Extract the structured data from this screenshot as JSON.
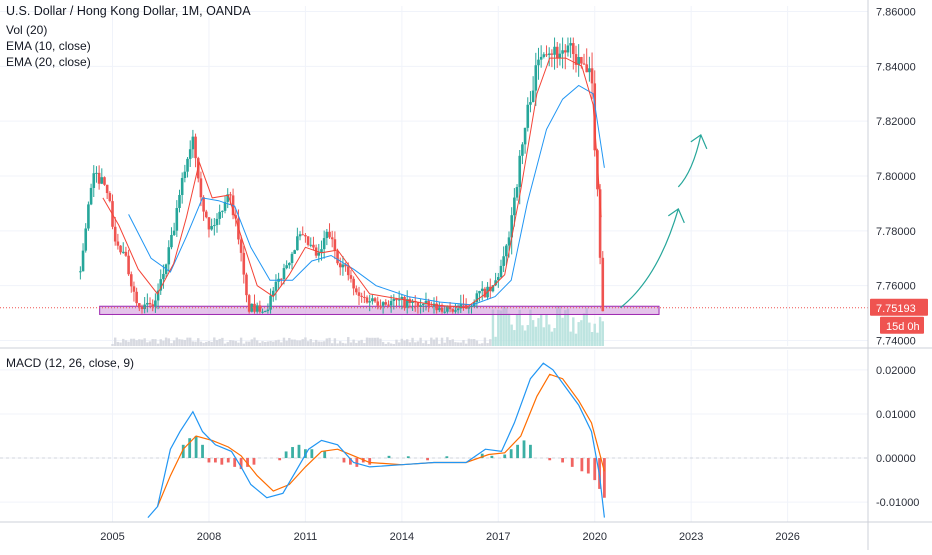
{
  "header": {
    "title": "U.S. Dollar / Hong Kong Dollar, 1M, OANDA",
    "indicators": [
      "Vol (20)",
      "EMA (10, close)",
      "EMA (20, close)"
    ]
  },
  "macd_pane": {
    "label": "MACD (12, 26, close, 9)"
  },
  "price_badge": {
    "value": "7.75193",
    "countdown": "15d 0h"
  },
  "colors": {
    "up": "#26a69a",
    "down": "#ef5350",
    "ema10": "#f44336",
    "ema20": "#2196f3",
    "macd_line": "#2196f3",
    "signal_line": "#ff6d00",
    "zone_fill": "#ce93d8",
    "arrow": "#26a69a",
    "price_line": "#ef5350"
  },
  "chart_data": [
    {
      "type": "candlestick",
      "name": "price-pane",
      "title": "U.S. Dollar / Hong Kong Dollar, 1M, OANDA",
      "x_ticks": [
        "2005",
        "2008",
        "2011",
        "2014",
        "2017",
        "2020",
        "2023",
        "2026"
      ],
      "y_ticks": [
        "7.74000",
        "7.76000",
        "7.78000",
        "7.80000",
        "7.82000",
        "7.84000",
        "7.86000"
      ],
      "ylim": [
        7.738,
        7.862
      ],
      "xlim": [
        2001.5,
        2028.5
      ],
      "last_price": 7.75193,
      "support_zone": {
        "from_year": 2004.6,
        "to_year": 2022.0,
        "low": 7.7495,
        "high": 7.7525
      },
      "price_path": [
        [
          2004.0,
          7.765
        ],
        [
          2004.2,
          7.785
        ],
        [
          2004.4,
          7.8
        ],
        [
          2004.8,
          7.798
        ],
        [
          2005.1,
          7.775
        ],
        [
          2005.4,
          7.77
        ],
        [
          2005.7,
          7.756
        ],
        [
          2006.0,
          7.752
        ],
        [
          2006.3,
          7.753
        ],
        [
          2006.6,
          7.765
        ],
        [
          2006.9,
          7.78
        ],
        [
          2007.2,
          7.8
        ],
        [
          2007.5,
          7.815
        ],
        [
          2007.8,
          7.79
        ],
        [
          2008.0,
          7.78
        ],
        [
          2008.3,
          7.785
        ],
        [
          2008.6,
          7.795
        ],
        [
          2008.9,
          7.78
        ],
        [
          2009.2,
          7.752
        ],
        [
          2009.5,
          7.751
        ],
        [
          2009.8,
          7.752
        ],
        [
          2010.1,
          7.76
        ],
        [
          2010.5,
          7.77
        ],
        [
          2010.8,
          7.778
        ],
        [
          2011.1,
          7.775
        ],
        [
          2011.4,
          7.77
        ],
        [
          2011.7,
          7.78
        ],
        [
          2012.0,
          7.77
        ],
        [
          2012.3,
          7.765
        ],
        [
          2012.6,
          7.756
        ],
        [
          2013.0,
          7.755
        ],
        [
          2013.5,
          7.754
        ],
        [
          2014.0,
          7.754
        ],
        [
          2014.5,
          7.753
        ],
        [
          2015.0,
          7.752
        ],
        [
          2015.5,
          7.751
        ],
        [
          2016.0,
          7.752
        ],
        [
          2016.4,
          7.757
        ],
        [
          2016.8,
          7.758
        ],
        [
          2017.2,
          7.77
        ],
        [
          2017.6,
          7.8
        ],
        [
          2018.0,
          7.83
        ],
        [
          2018.4,
          7.848
        ],
        [
          2018.8,
          7.845
        ],
        [
          2019.2,
          7.846
        ],
        [
          2019.6,
          7.84
        ],
        [
          2019.9,
          7.835
        ],
        [
          2020.1,
          7.79
        ],
        [
          2020.25,
          7.752
        ]
      ],
      "ema10_path": [
        [
          2004.7,
          7.792
        ],
        [
          2005.2,
          7.782
        ],
        [
          2005.8,
          7.766
        ],
        [
          2006.4,
          7.757
        ],
        [
          2006.9,
          7.768
        ],
        [
          2007.3,
          7.785
        ],
        [
          2007.7,
          7.805
        ],
        [
          2008.1,
          7.792
        ],
        [
          2008.6,
          7.793
        ],
        [
          2009.0,
          7.778
        ],
        [
          2009.5,
          7.76
        ],
        [
          2010.0,
          7.756
        ],
        [
          2010.5,
          7.764
        ],
        [
          2011.0,
          7.774
        ],
        [
          2011.5,
          7.772
        ],
        [
          2012.0,
          7.773
        ],
        [
          2012.5,
          7.765
        ],
        [
          2013.0,
          7.757
        ],
        [
          2014.0,
          7.755
        ],
        [
          2015.0,
          7.753
        ],
        [
          2016.0,
          7.752
        ],
        [
          2016.6,
          7.757
        ],
        [
          2017.2,
          7.764
        ],
        [
          2017.7,
          7.795
        ],
        [
          2018.2,
          7.83
        ],
        [
          2018.6,
          7.843
        ],
        [
          2019.1,
          7.843
        ],
        [
          2019.6,
          7.84
        ],
        [
          2019.95,
          7.826
        ],
        [
          2020.2,
          7.785
        ]
      ],
      "ema20_path": [
        [
          2005.5,
          7.786
        ],
        [
          2006.2,
          7.77
        ],
        [
          2006.8,
          7.765
        ],
        [
          2007.3,
          7.778
        ],
        [
          2007.8,
          7.792
        ],
        [
          2008.3,
          7.791
        ],
        [
          2008.8,
          7.789
        ],
        [
          2009.3,
          7.774
        ],
        [
          2009.9,
          7.762
        ],
        [
          2010.6,
          7.762
        ],
        [
          2011.2,
          7.769
        ],
        [
          2011.8,
          7.771
        ],
        [
          2012.5,
          7.766
        ],
        [
          2013.2,
          7.76
        ],
        [
          2014.2,
          7.756
        ],
        [
          2015.2,
          7.754
        ],
        [
          2016.2,
          7.753
        ],
        [
          2016.9,
          7.756
        ],
        [
          2017.4,
          7.762
        ],
        [
          2017.9,
          7.79
        ],
        [
          2018.5,
          7.817
        ],
        [
          2019.0,
          7.828
        ],
        [
          2019.5,
          7.833
        ],
        [
          2019.95,
          7.83
        ],
        [
          2020.3,
          7.803
        ]
      ],
      "projection_arrows": [
        {
          "from": [
            2020.8,
            7.752
          ],
          "to": [
            2022.6,
            7.788
          ]
        },
        {
          "from": [
            2022.6,
            7.796
          ],
          "to": [
            2023.3,
            7.815
          ]
        }
      ]
    },
    {
      "type": "line",
      "name": "macd-pane",
      "title": "MACD (12, 26, close, 9)",
      "y_ticks": [
        "-0.01000",
        "0.00000",
        "0.01000",
        "0.02000"
      ],
      "ylim": [
        -0.0145,
        0.0245
      ],
      "series": [
        {
          "values": [
            [
              2006.1,
              -0.0135
            ],
            [
              2006.4,
              -0.011
            ],
            [
              2006.8,
              0.002
            ],
            [
              2007.1,
              0.006
            ],
            [
              2007.5,
              0.0105
            ],
            [
              2007.8,
              0.006
            ],
            [
              2008.2,
              0.003
            ],
            [
              2008.7,
              0.0015
            ],
            [
              2009.0,
              -0.002
            ],
            [
              2009.3,
              -0.006
            ],
            [
              2009.8,
              -0.009
            ],
            [
              2010.3,
              -0.008
            ],
            [
              2010.7,
              -0.003
            ],
            [
              2011.1,
              0.002
            ],
            [
              2011.5,
              0.004
            ],
            [
              2012.0,
              0.003
            ],
            [
              2012.5,
              -0.001
            ],
            [
              2013.0,
              -0.002
            ],
            [
              2014.0,
              -0.0015
            ],
            [
              2015.0,
              -0.001
            ],
            [
              2016.0,
              -0.001
            ],
            [
              2016.6,
              0.002
            ],
            [
              2017.1,
              0.0015
            ],
            [
              2017.5,
              0.008
            ],
            [
              2018.0,
              0.018
            ],
            [
              2018.4,
              0.0215
            ],
            [
              2018.7,
              0.02
            ],
            [
              2019.1,
              0.016
            ],
            [
              2019.5,
              0.012
            ],
            [
              2019.9,
              0.006
            ],
            [
              2020.15,
              -0.004
            ],
            [
              2020.3,
              -0.0135
            ]
          ]
        },
        {
          "values": [
            [
              2006.4,
              -0.011
            ],
            [
              2006.8,
              -0.004
            ],
            [
              2007.2,
              0.002
            ],
            [
              2007.6,
              0.005
            ],
            [
              2008.1,
              0.004
            ],
            [
              2008.6,
              0.0025
            ],
            [
              2009.0,
              0.0005
            ],
            [
              2009.5,
              -0.004
            ],
            [
              2010.0,
              -0.0075
            ],
            [
              2010.5,
              -0.006
            ],
            [
              2011.0,
              -0.002
            ],
            [
              2011.5,
              0.0015
            ],
            [
              2012.0,
              0.002
            ],
            [
              2012.5,
              0.0005
            ],
            [
              2013.0,
              -0.001
            ],
            [
              2014.0,
              -0.0015
            ],
            [
              2015.0,
              -0.001
            ],
            [
              2016.0,
              -0.001
            ],
            [
              2016.7,
              0.0008
            ],
            [
              2017.2,
              0.0012
            ],
            [
              2017.7,
              0.005
            ],
            [
              2018.2,
              0.014
            ],
            [
              2018.6,
              0.019
            ],
            [
              2019.0,
              0.018
            ],
            [
              2019.5,
              0.013
            ],
            [
              2019.9,
              0.008
            ],
            [
              2020.3,
              -0.003
            ]
          ]
        }
      ],
      "histogram": [
        [
          2007.2,
          0.003
        ],
        [
          2007.4,
          0.0045
        ],
        [
          2007.6,
          0.005
        ],
        [
          2007.8,
          0.003
        ],
        [
          2008.0,
          -0.001
        ],
        [
          2008.2,
          -0.001
        ],
        [
          2008.4,
          -0.0015
        ],
        [
          2008.6,
          -0.001
        ],
        [
          2008.8,
          -0.002
        ],
        [
          2009.0,
          -0.0025
        ],
        [
          2009.2,
          -0.002
        ],
        [
          2009.4,
          -0.0015
        ],
        [
          2010.2,
          -0.0005
        ],
        [
          2010.4,
          0.0015
        ],
        [
          2010.6,
          0.0025
        ],
        [
          2010.8,
          0.003
        ],
        [
          2011.0,
          0.002
        ],
        [
          2011.2,
          0.002
        ],
        [
          2011.6,
          0.0015
        ],
        [
          2012.2,
          -0.001
        ],
        [
          2012.4,
          -0.0015
        ],
        [
          2012.6,
          -0.002
        ],
        [
          2012.8,
          -0.001
        ],
        [
          2013.0,
          -0.0015
        ],
        [
          2013.6,
          0.0005
        ],
        [
          2014.2,
          0.0004
        ],
        [
          2014.8,
          -0.0005
        ],
        [
          2015.4,
          0.0004
        ],
        [
          2016.5,
          0.001
        ],
        [
          2016.8,
          0.0005
        ],
        [
          2017.2,
          0.0008
        ],
        [
          2017.4,
          0.002
        ],
        [
          2017.6,
          0.003
        ],
        [
          2017.8,
          0.004
        ],
        [
          2018.0,
          0.003
        ],
        [
          2018.6,
          -0.0005
        ],
        [
          2019.0,
          -0.001
        ],
        [
          2019.3,
          -0.002
        ],
        [
          2019.6,
          -0.003
        ],
        [
          2019.8,
          -0.0035
        ],
        [
          2020.0,
          -0.005
        ],
        [
          2020.15,
          -0.007
        ],
        [
          2020.3,
          -0.009
        ]
      ],
      "zero_line": 0.0
    }
  ]
}
